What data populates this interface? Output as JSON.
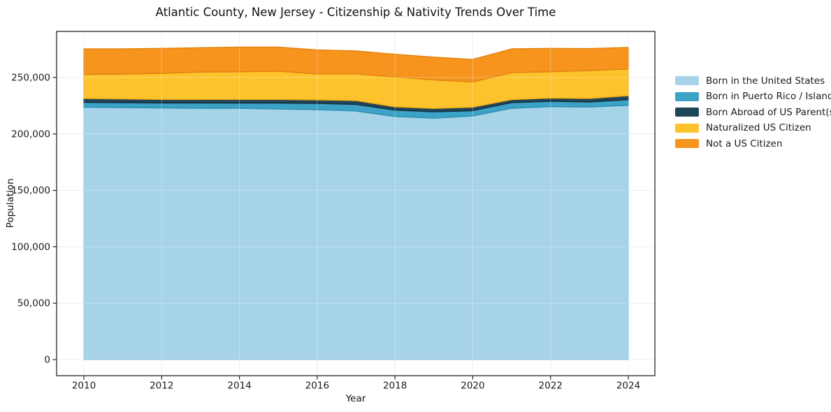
{
  "figure": {
    "title": "Atlantic County, New Jersey - Citizenship & Nativity Trends Over Time"
  },
  "chart_data": {
    "type": "area",
    "stacked": true,
    "title": "Atlantic County, New Jersey - Citizenship & Nativity Trends Over Time",
    "xlabel": "Year",
    "ylabel": "Population",
    "x": [
      2010,
      2011,
      2012,
      2013,
      2014,
      2015,
      2016,
      2017,
      2018,
      2019,
      2020,
      2021,
      2022,
      2023,
      2024
    ],
    "series": [
      {
        "name": "Born in the United States",
        "color": "#a6d3e8",
        "edge": "#8fc2dc",
        "values": [
          223700,
          223400,
          223000,
          222800,
          222800,
          222100,
          221500,
          220300,
          215500,
          214000,
          215900,
          222800,
          224200,
          223800,
          225400
        ]
      },
      {
        "name": "Born in Puerto Rico / Islands",
        "color": "#3da3c6",
        "edge": "#2b8fb2",
        "values": [
          4300,
          4300,
          4400,
          4600,
          4500,
          5200,
          5600,
          5800,
          5600,
          5600,
          4700,
          5000,
          4700,
          4500,
          5000
        ]
      },
      {
        "name": "Born Abroad of US Parent(s)",
        "color": "#20445a",
        "edge": "#142f40",
        "values": [
          3400,
          3300,
          3200,
          3200,
          3300,
          3300,
          3100,
          3400,
          3000,
          3000,
          3100,
          2600,
          2900,
          3100,
          3500
        ]
      },
      {
        "name": "Naturalized US Citizen",
        "color": "#fcc32d",
        "edge": "#edaa10",
        "values": [
          21400,
          22100,
          23100,
          24200,
          24500,
          25000,
          23000,
          23700,
          26400,
          25300,
          22300,
          24000,
          23300,
          24700,
          23700
        ]
      },
      {
        "name": "Not a US Citizen",
        "color": "#f6941e",
        "edge": "#e2820d",
        "values": [
          22600,
          22300,
          22100,
          21600,
          21900,
          21400,
          21300,
          20300,
          20100,
          20200,
          20000,
          21000,
          20700,
          19500,
          19100
        ]
      }
    ],
    "xticks": [
      2010,
      2012,
      2014,
      2016,
      2018,
      2020,
      2022,
      2024
    ],
    "yticks": [
      0,
      50000,
      100000,
      150000,
      200000,
      250000
    ],
    "xlim": [
      2009.3,
      2024.7
    ],
    "ylim": [
      0,
      290800
    ],
    "grid": true,
    "legend_position": "right"
  },
  "colors": {
    "grid": "#e7e7e7",
    "grid_over_fill": "rgba(255,255,255,0.3)",
    "spine": "#262626",
    "tick_text": "#1a1a1a"
  }
}
